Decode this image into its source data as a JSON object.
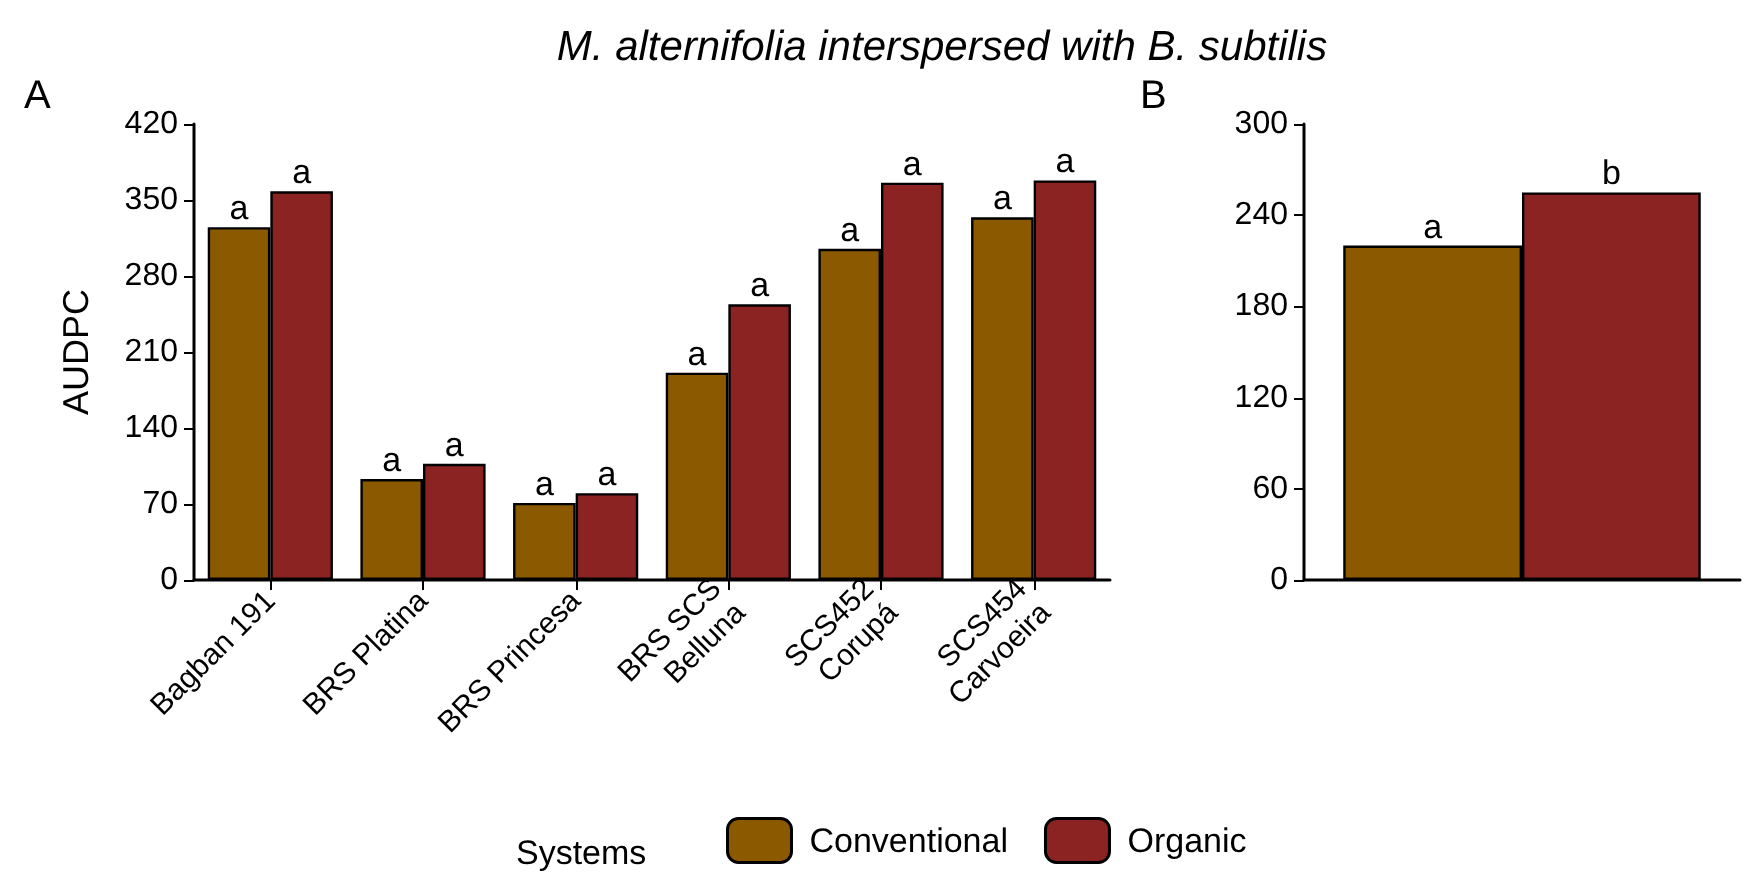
{
  "chart_data": [
    {
      "type": "bar",
      "title": "M. alternifolia interspersed with B. subtilis",
      "ylabel": "AUDPC",
      "legend_title": "Systems",
      "legend": "bottom",
      "annotations": [
        "A"
      ],
      "categories": [
        "Bagban 191",
        "BRS Platina",
        "BRS Princesa",
        "BRS SCS\nBelluna",
        "SCS452\nCorupá",
        "SCS454\nCarvoeira"
      ],
      "series": [
        {
          "name": "Conventional",
          "color": "#8b5a00",
          "values": [
            325,
            93,
            71,
            191,
            305,
            334
          ],
          "value_labels": [
            "a",
            "a",
            "a",
            "a",
            "a",
            "a"
          ]
        },
        {
          "name": "Organic",
          "color": "#8b2323",
          "values": [
            358,
            107,
            80,
            254,
            366,
            368
          ],
          "value_labels": [
            "a",
            "a",
            "a",
            "a",
            "a",
            "a"
          ]
        }
      ],
      "ylim": [
        0,
        420
      ],
      "yticks": [
        0,
        70,
        140,
        210,
        280,
        350,
        420
      ],
      "grid": false
    },
    {
      "type": "bar",
      "annotations": [
        "B"
      ],
      "categories": [
        null
      ],
      "tick_labels": "y",
      "series": [
        {
          "color": "#8b5a00",
          "values": [
            220
          ],
          "value_labels": [
            "a"
          ]
        },
        {
          "color": "#8b2323",
          "values": [
            255
          ],
          "value_labels": [
            "b"
          ]
        }
      ],
      "ylim": [
        0,
        300
      ],
      "yticks": [
        0,
        60,
        120,
        180,
        240,
        300
      ],
      "grid": false
    }
  ]
}
